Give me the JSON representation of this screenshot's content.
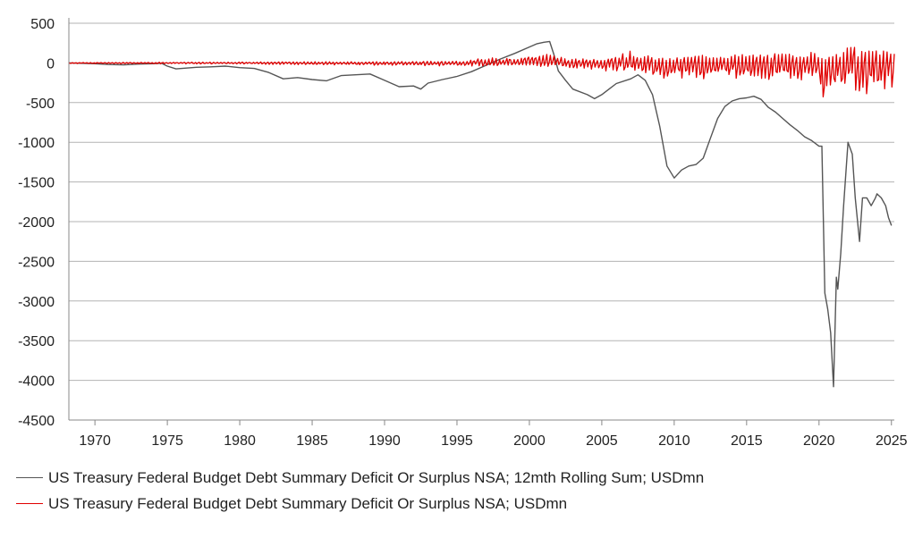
{
  "chart_data": {
    "type": "line",
    "title": "",
    "xlabel": "",
    "ylabel": "",
    "xlim": [
      1968.2,
      2025.2
    ],
    "ylim": [
      -4500,
      500
    ],
    "yticks": [
      500,
      0,
      -500,
      -1000,
      -1500,
      -2000,
      -2500,
      -3000,
      -3500,
      -4000,
      -4500
    ],
    "xticks": [
      1970,
      1975,
      1980,
      1985,
      1990,
      1995,
      2000,
      2005,
      2010,
      2015,
      2020,
      2025
    ],
    "grid": "horizontal",
    "legend_position": "bottom-left",
    "series": [
      {
        "name": "US Treasury Federal Budget Debt Summary Deficit Or Surplus NSA; 12mth Rolling Sum; USDmn",
        "color": "#555555",
        "x": [
          1968.2,
          1969.0,
          1970.0,
          1971.0,
          1972.0,
          1973.0,
          1974.0,
          1974.6,
          1975.0,
          1975.6,
          1976.0,
          1977.0,
          1978.0,
          1979.0,
          1980.0,
          1981.0,
          1982.0,
          1983.0,
          1984.0,
          1985.0,
          1986.0,
          1987.0,
          1988.0,
          1989.0,
          1990.0,
          1991.0,
          1992.0,
          1992.5,
          1993.0,
          1994.0,
          1995.0,
          1996.0,
          1997.0,
          1998.0,
          1999.0,
          2000.0,
          2000.5,
          2001.0,
          2001.4,
          2001.7,
          2002.0,
          2002.5,
          2003.0,
          2004.0,
          2004.5,
          2005.0,
          2005.5,
          2006.0,
          2007.0,
          2007.5,
          2008.0,
          2008.5,
          2009.0,
          2009.5,
          2010.0,
          2010.5,
          2011.0,
          2011.5,
          2012.0,
          2012.5,
          2013.0,
          2013.5,
          2014.0,
          2014.5,
          2015.0,
          2015.5,
          2016.0,
          2016.5,
          2017.0,
          2017.5,
          2018.0,
          2018.5,
          2019.0,
          2019.5,
          2020.0,
          2020.2,
          2020.4,
          2020.6,
          2020.8,
          2021.0,
          2021.2,
          2021.3,
          2021.5,
          2021.7,
          2022.0,
          2022.3,
          2022.5,
          2022.8,
          2023.0,
          2023.3,
          2023.6,
          2023.9,
          2024.0,
          2024.3,
          2024.6,
          2024.8,
          2025.0
        ],
        "values": [
          0,
          -5,
          -10,
          -20,
          -25,
          -15,
          -10,
          -5,
          -40,
          -75,
          -70,
          -55,
          -50,
          -40,
          -60,
          -70,
          -120,
          -200,
          -185,
          -210,
          -225,
          -160,
          -150,
          -140,
          -220,
          -300,
          -290,
          -330,
          -255,
          -210,
          -170,
          -110,
          -30,
          50,
          120,
          200,
          240,
          260,
          270,
          100,
          -100,
          -220,
          -330,
          -400,
          -450,
          -400,
          -330,
          -260,
          -200,
          -150,
          -220,
          -400,
          -800,
          -1300,
          -1450,
          -1350,
          -1300,
          -1280,
          -1200,
          -950,
          -700,
          -550,
          -480,
          -450,
          -440,
          -420,
          -460,
          -560,
          -620,
          -700,
          -780,
          -850,
          -930,
          -980,
          -1050,
          -1050,
          -2900,
          -3100,
          -3400,
          -4080,
          -2700,
          -2850,
          -2400,
          -1800,
          -1000,
          -1150,
          -1700,
          -2250,
          -1700,
          -1700,
          -1800,
          -1700,
          -1650,
          -1700,
          -1800,
          -1950,
          -2050
        ]
      },
      {
        "name": "US Treasury Federal Budget Debt Summary Deficit Or Surplus NSA; USDmn",
        "color": "#e00000",
        "envelope": {
          "x": [
            1968.2,
            1975.0,
            1980.0,
            1985.0,
            1990.0,
            1995.0,
            1997.0,
            2000.0,
            2001.0,
            2003.0,
            2005.0,
            2007.0,
            2008.0,
            2009.0,
            2010.0,
            2012.0,
            2015.0,
            2018.0,
            2019.0,
            2020.0,
            2020.3,
            2020.6,
            2021.0,
            2021.5,
            2022.0,
            2022.3,
            2022.6,
            2023.0,
            2024.0,
            2025.0
          ],
          "high": [
            5,
            8,
            12,
            15,
            15,
            25,
            60,
            90,
            130,
            50,
            60,
            150,
            100,
            60,
            60,
            110,
            110,
            120,
            150,
            130,
            60,
            120,
            80,
            150,
            200,
            300,
            150,
            150,
            200,
            150
          ],
          "low": [
            -8,
            -12,
            -15,
            -25,
            -30,
            -40,
            -40,
            -40,
            -50,
            -70,
            -100,
            -120,
            -150,
            -200,
            -220,
            -200,
            -200,
            -220,
            -250,
            -200,
            -850,
            -500,
            -400,
            -380,
            -300,
            -200,
            -450,
            -400,
            -420,
            -350
          ]
        }
      }
    ]
  }
}
